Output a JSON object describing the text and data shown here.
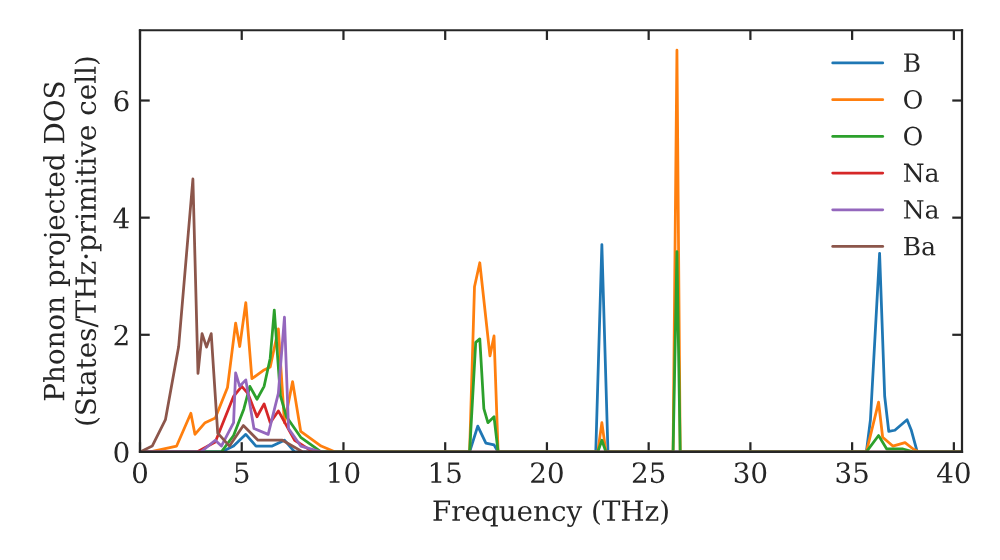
{
  "chart_data": {
    "type": "line",
    "xlabel": "Frequency (THz)",
    "ylabel": "Phonon projected DOS\n(States/THz·primitive cell)",
    "xlim": [
      0,
      40.4
    ],
    "ylim": [
      0,
      7.2
    ],
    "xticks": [
      0,
      5,
      10,
      15,
      20,
      25,
      30,
      35,
      40
    ],
    "yticks": [
      0,
      2,
      4,
      6
    ],
    "grid": false,
    "legend": "top right",
    "marker": "none",
    "line_style": "solid",
    "series": [
      {
        "name": "B",
        "color": "#1f77b4",
        "x": [
          0,
          4,
          4.6,
          5.2,
          5.7,
          6.5,
          7.1,
          7.6,
          16.2,
          16.6,
          17.0,
          17.4,
          17.6,
          22.4,
          22.7,
          23.0,
          35.7,
          35.9,
          36.35,
          36.6,
          36.8,
          37.1,
          37.7,
          37.9,
          38.2,
          40.4
        ],
        "values": [
          0,
          0,
          0.1,
          0.3,
          0.1,
          0.1,
          0.2,
          0,
          0,
          0.44,
          0.15,
          0.12,
          0,
          0,
          3.54,
          0,
          0,
          0.55,
          3.39,
          0.95,
          0.35,
          0.37,
          0.55,
          0.38,
          0,
          0
        ]
      },
      {
        "name": "O",
        "color": "#ff7f0e",
        "x": [
          0,
          0.5,
          1.8,
          2.5,
          2.7,
          3.2,
          3.7,
          4.3,
          4.7,
          4.9,
          5.2,
          5.5,
          6.1,
          6.4,
          6.8,
          7.1,
          7.5,
          7.9,
          8.9,
          9.6,
          16.2,
          16.44,
          16.7,
          17.2,
          17.4,
          17.6,
          22.5,
          22.7,
          22.9,
          26.2,
          26.39,
          26.55,
          35.7,
          35.9,
          36.3,
          36.5,
          37.0,
          37.6,
          38.0,
          38.3,
          40.4
        ],
        "values": [
          0,
          0,
          0.1,
          0.66,
          0.3,
          0.5,
          0.58,
          1.1,
          2.2,
          1.8,
          2.55,
          1.25,
          1.4,
          1.45,
          2.1,
          0.5,
          1.2,
          0.35,
          0.1,
          0,
          0,
          2.82,
          3.23,
          1.64,
          1.98,
          0,
          0,
          0.5,
          0,
          0,
          6.86,
          0,
          0,
          0.28,
          0.85,
          0.25,
          0.1,
          0.16,
          0.05,
          0,
          0
        ]
      },
      {
        "name": "O",
        "color": "#2ca02c",
        "x": [
          0,
          4.0,
          4.6,
          5.1,
          5.4,
          5.75,
          6.1,
          6.4,
          6.6,
          6.9,
          7.2,
          7.9,
          8.9,
          16.2,
          16.5,
          16.7,
          16.9,
          17.1,
          17.4,
          17.6,
          22.5,
          22.7,
          22.9,
          26.2,
          26.39,
          26.55,
          35.7,
          36.3,
          36.7,
          37.5,
          38.0,
          40.4
        ],
        "values": [
          0,
          0,
          0.28,
          0.73,
          1.12,
          0.9,
          1.12,
          1.6,
          2.42,
          0.96,
          0.6,
          0.25,
          0,
          0,
          1.87,
          1.93,
          0.74,
          0.5,
          0.6,
          0,
          0,
          0.2,
          0,
          0,
          3.42,
          0,
          0,
          0.28,
          0.05,
          0.05,
          0,
          0
        ]
      },
      {
        "name": "Na",
        "color": "#d62728",
        "x": [
          0,
          2.8,
          3.7,
          4.6,
          5.0,
          5.3,
          5.75,
          6.1,
          6.4,
          6.8,
          7.2,
          7.6,
          8.5
        ],
        "values": [
          0,
          0,
          0.17,
          0.95,
          1.12,
          1.0,
          0.6,
          0.82,
          0.5,
          0.7,
          0.45,
          0.2,
          0
        ]
      },
      {
        "name": "Na",
        "color": "#9467bd",
        "x": [
          0,
          3.0,
          3.7,
          4.0,
          4.6,
          4.7,
          4.9,
          5.2,
          5.6,
          6.3,
          6.8,
          7.1,
          7.3,
          7.9,
          8.9
        ],
        "values": [
          0,
          0,
          0.2,
          0.1,
          0.5,
          1.35,
          1.12,
          1.23,
          0.4,
          0.3,
          1.0,
          2.3,
          0.4,
          0.1,
          0
        ]
      },
      {
        "name": "Ba",
        "color": "#8c564b",
        "x": [
          0,
          0.6,
          1.25,
          1.9,
          2.6,
          2.85,
          3.05,
          3.27,
          3.5,
          3.82,
          4.4,
          5.08,
          5.8,
          7.0,
          8.0,
          40.4
        ],
        "values": [
          0,
          0.1,
          0.55,
          1.8,
          4.66,
          1.34,
          2.02,
          1.79,
          2.02,
          0.32,
          0.1,
          0.45,
          0.2,
          0.2,
          0,
          0
        ]
      }
    ]
  }
}
